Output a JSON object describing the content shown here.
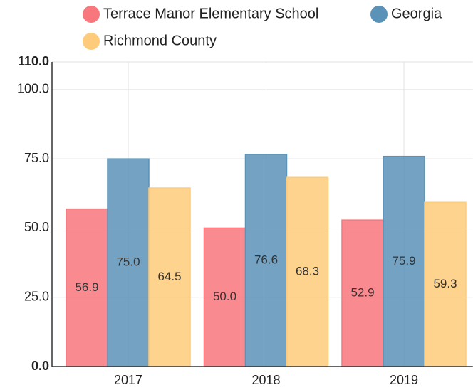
{
  "chart_data": {
    "type": "bar",
    "categories": [
      "2017",
      "2018",
      "2019"
    ],
    "series": [
      {
        "name": "Terrace Manor Elementary School",
        "color": "#f8777c",
        "values": [
          56.9,
          50.0,
          52.9
        ],
        "value_labels": [
          "56.9",
          "50.0",
          "52.9"
        ]
      },
      {
        "name": "Georgia",
        "color": "#5b92b8",
        "values": [
          75.0,
          76.6,
          75.9
        ],
        "value_labels": [
          "75.0",
          "76.6",
          "75.9"
        ]
      },
      {
        "name": "Richmond County",
        "color": "#fecb7a",
        "values": [
          64.5,
          68.3,
          59.3
        ],
        "value_labels": [
          "64.5",
          "68.3",
          "59.3"
        ]
      }
    ],
    "ylim": [
      0,
      110
    ],
    "yticks": [
      {
        "value": 0,
        "label": "0.0"
      },
      {
        "value": 25,
        "label": "25.0"
      },
      {
        "value": 50,
        "label": "50.0"
      },
      {
        "value": 75,
        "label": "75.0"
      },
      {
        "value": 100,
        "label": "100.0"
      },
      {
        "value": 110,
        "label": "110.0"
      }
    ],
    "grid": true
  }
}
